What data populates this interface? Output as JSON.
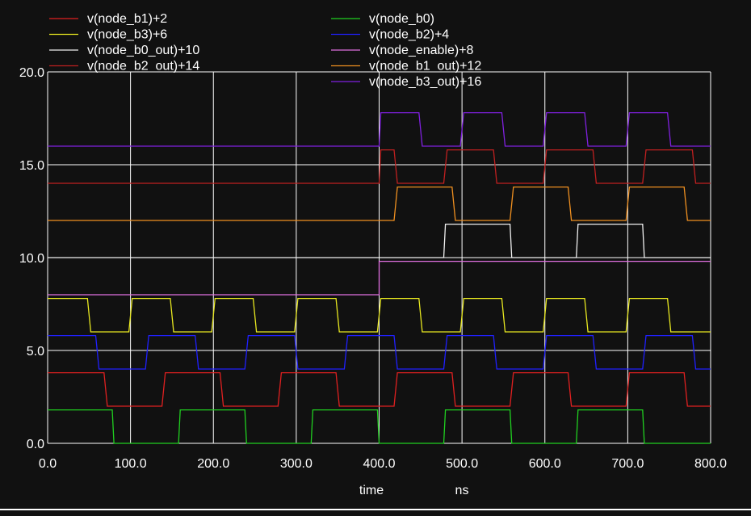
{
  "chart_data": {
    "type": "line",
    "xlabel": "time",
    "xunit": "ns",
    "xlim": [
      0,
      800
    ],
    "ylim": [
      0,
      20
    ],
    "x_ticks": [
      0,
      100,
      200,
      300,
      400,
      500,
      600,
      700,
      800
    ],
    "x_tick_labels": [
      "0.0",
      "100.0",
      "200.0",
      "300.0",
      "400.0",
      "500.0",
      "600.0",
      "700.0",
      "800.0"
    ],
    "y_ticks": [
      0,
      5,
      10,
      15,
      20
    ],
    "y_tick_labels": [
      "0.0",
      "5.0",
      "10.0",
      "15.0",
      "20.0"
    ],
    "grid": true,
    "legend_placement": "top, two columns",
    "series": [
      {
        "name": "v(node_b1)+2",
        "color": "#e02020",
        "points": [
          [
            0,
            3.8
          ],
          [
            68,
            3.8
          ],
          [
            72,
            2.0
          ],
          [
            138,
            2.0
          ],
          [
            142,
            3.8
          ],
          [
            208,
            3.8
          ],
          [
            212,
            2.0
          ],
          [
            278,
            2.0
          ],
          [
            282,
            3.8
          ],
          [
            348,
            3.8
          ],
          [
            352,
            2.0
          ],
          [
            418,
            2.0
          ],
          [
            422,
            3.8
          ],
          [
            488,
            3.8
          ],
          [
            492,
            2.0
          ],
          [
            558,
            2.0
          ],
          [
            562,
            3.8
          ],
          [
            628,
            3.8
          ],
          [
            632,
            2.0
          ],
          [
            698,
            2.0
          ],
          [
            702,
            3.8
          ],
          [
            768,
            3.8
          ],
          [
            772,
            2.0
          ],
          [
            800,
            2.0
          ]
        ]
      },
      {
        "name": "v(node_b0)",
        "color": "#20d020",
        "points": [
          [
            0,
            1.8
          ],
          [
            78,
            1.8
          ],
          [
            80,
            0.0
          ],
          [
            158,
            0.0
          ],
          [
            160,
            1.8
          ],
          [
            238,
            1.8
          ],
          [
            240,
            0.0
          ],
          [
            318,
            0.0
          ],
          [
            320,
            1.8
          ],
          [
            398,
            1.8
          ],
          [
            400,
            0.0
          ],
          [
            478,
            0.0
          ],
          [
            480,
            1.8
          ],
          [
            558,
            1.8
          ],
          [
            560,
            0.0
          ],
          [
            638,
            0.0
          ],
          [
            640,
            1.8
          ],
          [
            718,
            1.8
          ],
          [
            720,
            0.0
          ],
          [
            800,
            0.0
          ]
        ]
      },
      {
        "name": "v(node_b3)+6",
        "color": "#e8e820",
        "points": [
          [
            0,
            7.8
          ],
          [
            48,
            7.8
          ],
          [
            52,
            6.0
          ],
          [
            98,
            6.0
          ],
          [
            102,
            7.8
          ],
          [
            148,
            7.8
          ],
          [
            152,
            6.0
          ],
          [
            198,
            6.0
          ],
          [
            202,
            7.8
          ],
          [
            248,
            7.8
          ],
          [
            252,
            6.0
          ],
          [
            298,
            6.0
          ],
          [
            302,
            7.8
          ],
          [
            348,
            7.8
          ],
          [
            352,
            6.0
          ],
          [
            398,
            6.0
          ],
          [
            402,
            7.8
          ],
          [
            448,
            7.8
          ],
          [
            452,
            6.0
          ],
          [
            498,
            6.0
          ],
          [
            502,
            7.8
          ],
          [
            548,
            7.8
          ],
          [
            552,
            6.0
          ],
          [
            598,
            6.0
          ],
          [
            602,
            7.8
          ],
          [
            648,
            7.8
          ],
          [
            652,
            6.0
          ],
          [
            698,
            6.0
          ],
          [
            702,
            7.8
          ],
          [
            748,
            7.8
          ],
          [
            752,
            6.0
          ],
          [
            800,
            6.0
          ]
        ]
      },
      {
        "name": "v(node_b2)+4",
        "color": "#2020ff",
        "points": [
          [
            0,
            5.8
          ],
          [
            58,
            5.8
          ],
          [
            62,
            4.0
          ],
          [
            118,
            4.0
          ],
          [
            122,
            5.8
          ],
          [
            178,
            5.8
          ],
          [
            182,
            4.0
          ],
          [
            238,
            4.0
          ],
          [
            242,
            5.8
          ],
          [
            298,
            5.8
          ],
          [
            302,
            4.0
          ],
          [
            358,
            4.0
          ],
          [
            362,
            5.8
          ],
          [
            418,
            5.8
          ],
          [
            422,
            4.0
          ],
          [
            478,
            4.0
          ],
          [
            482,
            5.8
          ],
          [
            538,
            5.8
          ],
          [
            542,
            4.0
          ],
          [
            598,
            4.0
          ],
          [
            602,
            5.8
          ],
          [
            658,
            5.8
          ],
          [
            662,
            4.0
          ],
          [
            718,
            4.0
          ],
          [
            722,
            5.8
          ],
          [
            778,
            5.8
          ],
          [
            782,
            4.0
          ],
          [
            800,
            4.0
          ]
        ]
      },
      {
        "name": "v(node_b0_out)+10",
        "color": "#f0f0f0",
        "points": [
          [
            0,
            10.0
          ],
          [
            478,
            10.0
          ],
          [
            480,
            11.8
          ],
          [
            558,
            11.8
          ],
          [
            560,
            10.0
          ],
          [
            638,
            10.0
          ],
          [
            640,
            11.8
          ],
          [
            718,
            11.8
          ],
          [
            720,
            10.0
          ],
          [
            800,
            10.0
          ]
        ]
      },
      {
        "name": "v(node_enable)+8",
        "color": "#e070e0",
        "points": [
          [
            0,
            8.0
          ],
          [
            400,
            8.0
          ],
          [
            400,
            9.8
          ],
          [
            800,
            9.8
          ]
        ]
      },
      {
        "name": "v(node_b2_out)+14",
        "color": "#c02020",
        "points": [
          [
            0,
            14.0
          ],
          [
            400,
            14.0
          ],
          [
            402,
            15.8
          ],
          [
            418,
            15.8
          ],
          [
            422,
            14.0
          ],
          [
            478,
            14.0
          ],
          [
            482,
            15.8
          ],
          [
            538,
            15.8
          ],
          [
            542,
            14.0
          ],
          [
            598,
            14.0
          ],
          [
            602,
            15.8
          ],
          [
            658,
            15.8
          ],
          [
            662,
            14.0
          ],
          [
            718,
            14.0
          ],
          [
            722,
            15.8
          ],
          [
            778,
            15.8
          ],
          [
            782,
            14.0
          ],
          [
            800,
            14.0
          ]
        ]
      },
      {
        "name": "v(node_b1_out)+12",
        "color": "#f09020",
        "points": [
          [
            0,
            12.0
          ],
          [
            418,
            12.0
          ],
          [
            422,
            13.8
          ],
          [
            488,
            13.8
          ],
          [
            492,
            12.0
          ],
          [
            558,
            12.0
          ],
          [
            562,
            13.8
          ],
          [
            628,
            13.8
          ],
          [
            632,
            12.0
          ],
          [
            698,
            12.0
          ],
          [
            702,
            13.8
          ],
          [
            768,
            13.8
          ],
          [
            772,
            12.0
          ],
          [
            800,
            12.0
          ]
        ]
      },
      {
        "name": "v(node_b3_out)+16",
        "color": "#8020e0",
        "points": [
          [
            0,
            16.0
          ],
          [
            400,
            16.0
          ],
          [
            402,
            17.8
          ],
          [
            448,
            17.8
          ],
          [
            452,
            16.0
          ],
          [
            498,
            16.0
          ],
          [
            502,
            17.8
          ],
          [
            548,
            17.8
          ],
          [
            552,
            16.0
          ],
          [
            598,
            16.0
          ],
          [
            602,
            17.8
          ],
          [
            648,
            17.8
          ],
          [
            652,
            16.0
          ],
          [
            698,
            16.0
          ],
          [
            702,
            17.8
          ],
          [
            748,
            17.8
          ],
          [
            752,
            16.0
          ],
          [
            800,
            16.0
          ]
        ]
      }
    ]
  }
}
